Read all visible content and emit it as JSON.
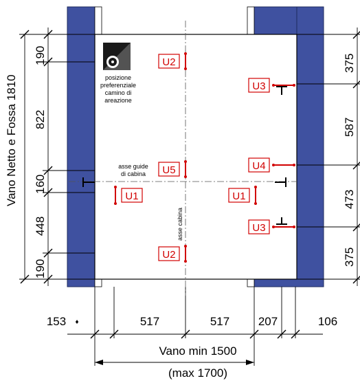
{
  "colors": {
    "wall": "#3f51a0",
    "wall_edge": "#1e2a5e",
    "line": "#000000",
    "marker": "#d10000"
  },
  "left_dimensions": {
    "total_label": "Vano Netto e Fossa 1810",
    "segments": [
      "190",
      "822",
      "160",
      "448",
      "190"
    ]
  },
  "right_dimensions": {
    "segments": [
      "375",
      "587",
      "473",
      "375"
    ]
  },
  "bottom_dimensions": {
    "segments": [
      "153",
      "517",
      "517",
      "207",
      "106"
    ],
    "vano_min": "Vano min 1500",
    "vano_max": "(max 1700)"
  },
  "notes": {
    "vent": [
      "posizione",
      "preferenziale",
      "camino di",
      "areazione"
    ],
    "guide_axis": [
      "asse guide",
      "di cabina"
    ],
    "car_axis": "asse cabina"
  },
  "markers": {
    "u2_top": "U2",
    "u2_bottom": "U2",
    "u3_top": "U3",
    "u3_bottom": "U3",
    "u4": "U4",
    "u5": "U5",
    "u1_left": "U1",
    "u1_right": "U1"
  },
  "icons": {
    "diamond": "♦",
    "vent": "fan-icon"
  }
}
